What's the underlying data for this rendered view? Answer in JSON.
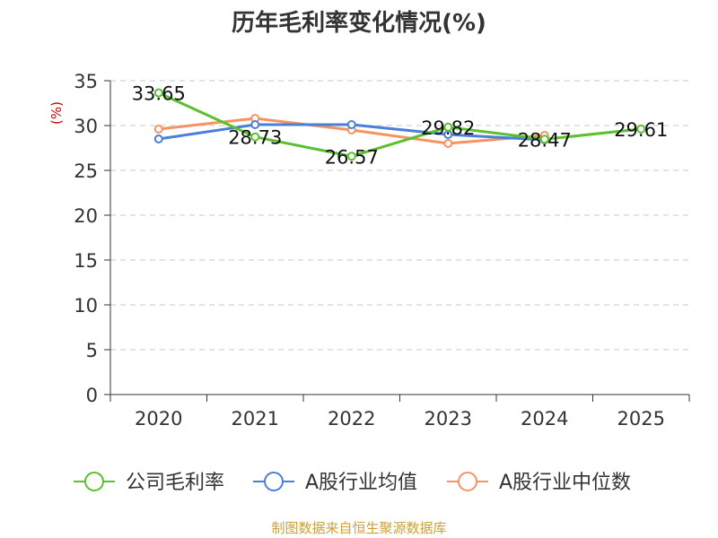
{
  "chart_data": {
    "type": "line",
    "title": "历年毛利率变化情况(%)",
    "ylabel": "(%)",
    "xlabel": "",
    "categories": [
      "2020",
      "2021",
      "2022",
      "2023",
      "2024",
      "2025"
    ],
    "ylim": [
      0,
      35
    ],
    "yticks": [
      "0",
      "5",
      "10",
      "15",
      "20",
      "25",
      "30",
      "35"
    ],
    "grid": "horizontal-dashed",
    "legend_position": "bottom",
    "series": [
      {
        "name": "公司毛利率",
        "color": "#5ac02f",
        "values": [
          33.65,
          28.73,
          26.57,
          29.82,
          28.47,
          29.61
        ],
        "labels": [
          "33.65",
          "28.73",
          "26.57",
          "29.82",
          "28.47",
          "29.61"
        ]
      },
      {
        "name": "A股行业均值",
        "color": "#4a7fd8",
        "values": [
          28.5,
          30.1,
          30.1,
          29.0,
          28.4,
          null
        ]
      },
      {
        "name": "A股行业中位数",
        "color": "#f39462",
        "values": [
          29.6,
          30.8,
          29.5,
          28.0,
          28.9,
          null
        ]
      }
    ],
    "source": "制图数据来自恒生聚源数据库"
  }
}
